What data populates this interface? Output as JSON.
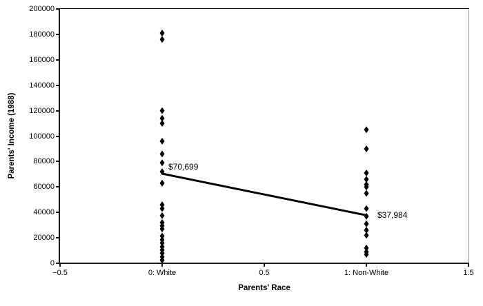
{
  "chart_data": {
    "type": "scatter",
    "title": "",
    "xlabel": "Parents' Race",
    "ylabel": "Parents' Income (1988)",
    "xlim": [
      -0.5,
      1.5
    ],
    "ylim": [
      0,
      200000
    ],
    "grid": false,
    "marker": "black-diamond",
    "marker_color": "#000000",
    "frame": {
      "axis_color": "#1a1a1a",
      "top_border_color": "#000000",
      "right_border_color": "#8f8f8f"
    },
    "y_ticks": [
      {
        "value": 0,
        "label": "0"
      },
      {
        "value": 20000,
        "label": "20000"
      },
      {
        "value": 40000,
        "label": "40000"
      },
      {
        "value": 60000,
        "label": "60000"
      },
      {
        "value": 80000,
        "label": "80000"
      },
      {
        "value": 100000,
        "label": "100000"
      },
      {
        "value": 120000,
        "label": "120000"
      },
      {
        "value": 140000,
        "label": "140000"
      },
      {
        "value": 160000,
        "label": "160000"
      },
      {
        "value": 180000,
        "label": "180000"
      },
      {
        "value": 200000,
        "label": "200000"
      }
    ],
    "x_ticks": [
      {
        "value": -0.5,
        "label": "−0.5"
      },
      {
        "value": 0,
        "label": "0: White"
      },
      {
        "value": 0.5,
        "label": "0.5"
      },
      {
        "value": 1,
        "label": "1: Non-White"
      },
      {
        "value": 1.5,
        "label": "1.5"
      }
    ],
    "series": [
      {
        "name": "0: White",
        "x": 0,
        "incomes": [
          181000,
          176000,
          120000,
          114000,
          110000,
          96000,
          86000,
          79000,
          72000,
          63000,
          46000,
          43000,
          37500,
          32000,
          29500,
          27000,
          21500,
          18500,
          16000,
          13000,
          10500,
          8000,
          5000,
          2500
        ]
      },
      {
        "name": "1: Non-White",
        "x": 1,
        "incomes": [
          105000,
          90000,
          71000,
          66000,
          62000,
          60000,
          55000,
          43000,
          37000,
          31000,
          26000,
          22000,
          12000,
          9000,
          7000
        ]
      }
    ],
    "trend_line": {
      "x1": 0,
      "y1": 70699,
      "x2": 1,
      "y2": 37984,
      "color": "#000000"
    },
    "annotations": [
      {
        "text": "$70,699",
        "x": 0,
        "y": 70699
      },
      {
        "text": "$37,984",
        "x": 1,
        "y": 37984
      }
    ]
  }
}
